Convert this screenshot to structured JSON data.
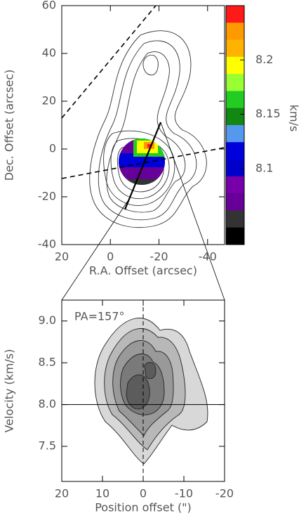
{
  "chart_data": [
    {
      "type": "contour",
      "xlabel": "R.A. Offset (arcsec)",
      "ylabel": "Dec. Offset (arcsec)",
      "xlim": [
        20,
        -47
      ],
      "ylim": [
        -40,
        60
      ],
      "xticks": [
        20,
        0,
        -20,
        -40
      ],
      "yticks": [
        -40,
        -20,
        0,
        20,
        40,
        60
      ],
      "colorbar": {
        "label": "km/s",
        "lim": [
          8.03,
          8.25
        ],
        "ticks": [
          8.1,
          8.15,
          8.2
        ],
        "colors": [
          "#ff1a1a",
          "#ff9900",
          "#ffb300",
          "#ffff00",
          "#99ff33",
          "#22cc22",
          "#118811",
          "#5599ee",
          "#0000dd",
          "#0000cc",
          "#7700aa",
          "#660099",
          "#333333",
          "#000000"
        ]
      }
    },
    {
      "type": "contour",
      "xlabel": "Position offset (\")",
      "ylabel": "Velocity (km/s)",
      "xlim": [
        20,
        -20
      ],
      "ylim": [
        7.08,
        9.25
      ],
      "xticks": [
        20,
        10,
        0,
        -10,
        -20
      ],
      "yticks": [
        {
          "value": 7.5,
          "label": "7.5"
        },
        {
          "value": 8,
          "label": "8.0"
        },
        {
          "value": 8.5,
          "label": "8.5"
        },
        {
          "value": 9,
          "label": "9.0"
        }
      ],
      "annotation": "PA=157°",
      "hline": 8,
      "vline": 0
    }
  ]
}
